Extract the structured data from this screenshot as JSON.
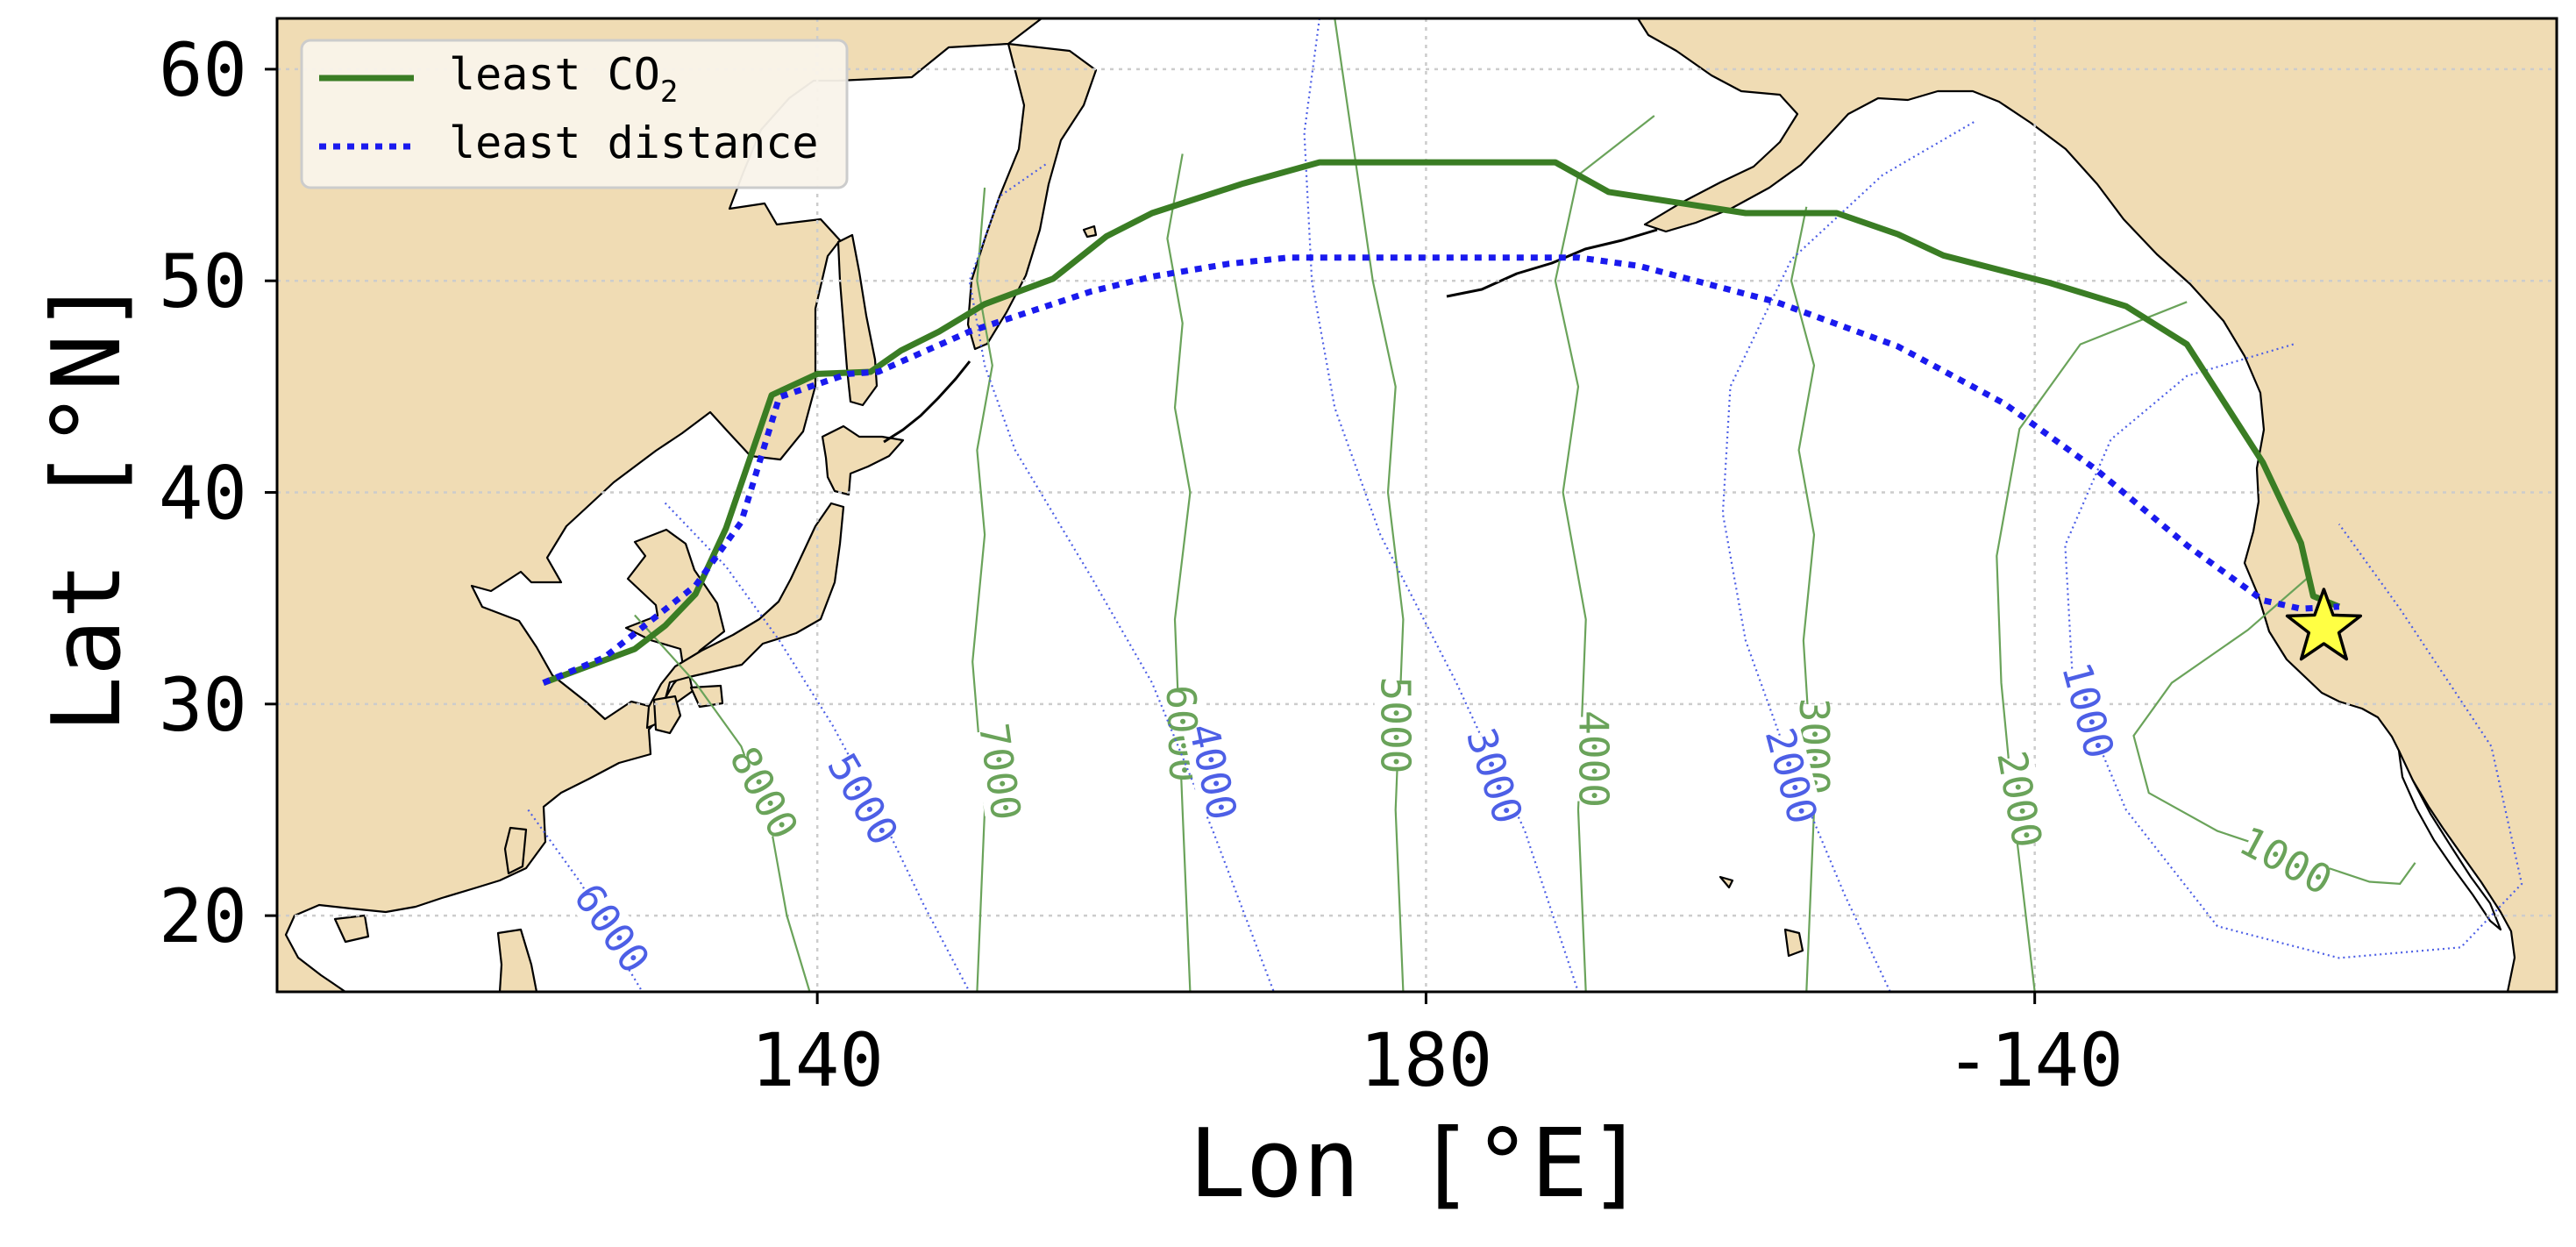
{
  "figure": {
    "xlabel": "Lon [°E]",
    "ylabel": "Lat [°N]",
    "x_ticks": [
      {
        "lon": 140,
        "label": "140"
      },
      {
        "lon": 180,
        "label": "180"
      },
      {
        "lon": 220,
        "label": "-140"
      }
    ],
    "y_ticks": [
      {
        "lat": 20,
        "label": "20"
      },
      {
        "lat": 30,
        "label": "30"
      },
      {
        "lat": 40,
        "label": "40"
      },
      {
        "lat": 50,
        "label": "50"
      },
      {
        "lat": 60,
        "label": "60"
      }
    ],
    "legend": {
      "placement": "upper-left",
      "entries": [
        {
          "key": "co2",
          "label": "least CO",
          "subscript": "2"
        },
        {
          "key": "distance",
          "label": "least distance"
        }
      ]
    },
    "colors": {
      "land": "#f0dcb4",
      "co2_route": "#3a7d24",
      "distance_route": "#1a1aee",
      "co2_contour": "#6aa35a",
      "distance_contour": "#4d5fe6",
      "star": "#ffff44",
      "grid": "#cccccc"
    },
    "grid": true,
    "marker": {
      "name": "destination-star",
      "lon": 239,
      "lat": 33.6
    }
  },
  "chart_data": {
    "type": "map",
    "xlim": [
      104.5,
      254.3
    ],
    "ylim": [
      16.4,
      62.4
    ],
    "series": [
      {
        "key": "co2",
        "name": "least CO2",
        "lon": [
          122,
          125,
          128,
          130,
          132,
          134,
          137,
          140,
          143.5,
          145.5,
          148,
          151,
          155.5,
          159,
          162,
          168,
          173,
          180.5,
          188.5,
          192,
          201,
          207,
          211,
          214,
          221,
          226,
          230,
          235,
          237.5,
          238.3,
          240
        ],
        "lat": [
          31.0,
          31.8,
          32.6,
          33.7,
          35.2,
          38.3,
          44.6,
          45.6,
          45.7,
          46.7,
          47.6,
          48.9,
          50.1,
          52.1,
          53.2,
          54.6,
          55.6,
          55.6,
          55.6,
          54.2,
          53.2,
          53.2,
          52.2,
          51.2,
          49.9,
          48.8,
          47.0,
          41.4,
          37.6,
          35.1,
          34.6
        ]
      },
      {
        "key": "distance",
        "name": "least distance",
        "lon": [
          122,
          126,
          129,
          132,
          135,
          137.5,
          142,
          144,
          150,
          158,
          162,
          167,
          171,
          178,
          186,
          190,
          194,
          203,
          211,
          218,
          224,
          230,
          235,
          237.5,
          240
        ],
        "lat": [
          31.0,
          32.2,
          33.9,
          35.6,
          38.6,
          44.5,
          45.6,
          45.7,
          47.6,
          49.5,
          50.2,
          50.8,
          51.1,
          51.1,
          51.1,
          51.1,
          50.7,
          49.0,
          46.9,
          44.2,
          41.1,
          37.5,
          34.9,
          34.5,
          34.6
        ]
      }
    ],
    "contours": [
      {
        "set": "co2",
        "label": "8000",
        "label_lon": 136.5,
        "label_lat": 25.8,
        "label_angle": 62,
        "lon": [
          128,
          132,
          135,
          137,
          138,
          139.5
        ],
        "lat": [
          34.2,
          31.0,
          28.0,
          24.0,
          20.0,
          16.4
        ]
      },
      {
        "set": "co2",
        "label": "7000",
        "label_lon": 152,
        "label_lat": 26.8,
        "label_angle": 82,
        "lon": [
          151,
          150.5,
          151.5,
          150.5,
          151,
          150.2,
          151,
          150.5
        ],
        "lat": [
          54.4,
          50.0,
          46.0,
          42.0,
          38.0,
          32.0,
          25.0,
          16.4
        ]
      },
      {
        "set": "co2",
        "label": "6000",
        "label_lon": 164,
        "label_lat": 28.6,
        "label_angle": 88,
        "lon": [
          164,
          163,
          164,
          163.5,
          164.5,
          163.5,
          164,
          164.5
        ],
        "lat": [
          56.0,
          52.0,
          48.0,
          44.0,
          40.0,
          34.0,
          25.0,
          16.4
        ]
      },
      {
        "set": "co2",
        "label": "5000",
        "label_lon": 178,
        "label_lat": 29.0,
        "label_angle": 90,
        "lon": [
          174,
          175.5,
          176.5,
          178,
          177.5,
          178.5,
          178,
          178.5
        ],
        "lat": [
          62.4,
          55.0,
          50.0,
          45.0,
          40.0,
          34.0,
          25.0,
          16.4
        ]
      },
      {
        "set": "co2",
        "label": "4000",
        "label_lon": 191,
        "label_lat": 27.4,
        "label_angle": 90,
        "lon": [
          195,
          190,
          188.5,
          190,
          189,
          190.5,
          190,
          190.5
        ],
        "lat": [
          57.8,
          55.0,
          50.0,
          45.0,
          40.0,
          34.0,
          25.0,
          16.4
        ]
      },
      {
        "set": "co2",
        "label": "3000",
        "label_lon": 205.5,
        "label_lat": 28.0,
        "label_angle": 90,
        "lon": [
          205,
          204,
          205.5,
          204.5,
          205.5,
          204.8,
          205.5,
          205
        ],
        "lat": [
          53.5,
          50.0,
          46.0,
          42.0,
          38.0,
          33.0,
          25.0,
          16.4
        ]
      },
      {
        "set": "co2",
        "label": "2000",
        "label_lon": 219,
        "label_lat": 25.5,
        "label_angle": 80,
        "lon": [
          230,
          223,
          219,
          217.5,
          217.8,
          218.6,
          220
        ],
        "lat": [
          49.0,
          47.0,
          43.0,
          37.0,
          31.0,
          25.0,
          16.4
        ]
      },
      {
        "set": "co2",
        "label": "1000",
        "label_lon": 236.5,
        "label_lat": 22.6,
        "label_angle": 28,
        "lon": [
          238,
          234,
          229,
          226.5,
          227.5,
          232,
          237,
          242,
          244,
          245
        ],
        "lat": [
          36.0,
          33.5,
          31.0,
          28.5,
          25.8,
          24.0,
          22.8,
          21.6,
          21.5,
          22.5
        ]
      },
      {
        "set": "distance",
        "label": "6000",
        "label_lon": 126.5,
        "label_lat": 19.4,
        "label_angle": 55,
        "lon": [
          121,
          124.5,
          126.5,
          128.5
        ],
        "lat": [
          25.0,
          21.5,
          18.8,
          16.4
        ]
      },
      {
        "set": "distance",
        "label": "5000",
        "label_lon": 143,
        "label_lat": 25.5,
        "label_angle": 60,
        "lon": [
          130,
          134,
          137.5,
          141,
          144,
          147,
          150
        ],
        "lat": [
          39.5,
          36.5,
          33.0,
          29.0,
          25.0,
          20.5,
          16.4
        ]
      },
      {
        "set": "distance",
        "label": "4000",
        "label_lon": 166,
        "label_lat": 26.8,
        "label_angle": 78,
        "lon": [
          155,
          152,
          150,
          151,
          153,
          158,
          162,
          166,
          170
        ],
        "lat": [
          55.5,
          54.0,
          50.0,
          46.0,
          42.0,
          36.0,
          31.0,
          24.0,
          16.4
        ]
      },
      {
        "set": "distance",
        "label": "3000",
        "label_lon": 184.5,
        "label_lat": 26.6,
        "label_angle": 72,
        "lon": [
          173,
          172,
          172.5,
          174,
          177,
          182,
          186.5,
          190
        ],
        "lat": [
          62.4,
          57.0,
          50.0,
          44.0,
          38.0,
          31.0,
          24.0,
          16.4
        ]
      },
      {
        "set": "distance",
        "label": "2000",
        "label_lon": 204,
        "label_lat": 26.6,
        "label_angle": 75,
        "lon": [
          216,
          210,
          204,
          200,
          199.5,
          201,
          204,
          207.5,
          210.5
        ],
        "lat": [
          57.5,
          55.0,
          51.0,
          45.0,
          39.0,
          33.0,
          27.0,
          21.0,
          16.4
        ]
      },
      {
        "set": "distance",
        "label": "1000",
        "label_lon": 223.5,
        "label_lat": 29.7,
        "label_angle": 75,
        "lon": [
          237,
          230,
          225,
          222,
          222.5,
          226,
          232,
          240,
          248,
          252,
          250,
          244,
          240
        ],
        "lat": [
          47.0,
          45.5,
          42.5,
          37.5,
          31.0,
          25.0,
          19.5,
          18.0,
          18.5,
          21.5,
          28.0,
          34.5,
          38.5
        ]
      }
    ]
  }
}
